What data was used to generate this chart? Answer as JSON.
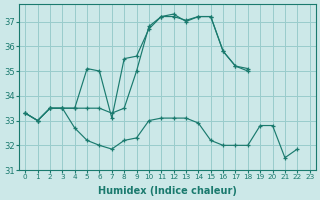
{
  "xlabel": "Humidex (Indice chaleur)",
  "bg_color": "#cce8e8",
  "grid_color": "#99cccc",
  "line_color": "#1a7a6e",
  "xlim": [
    -0.5,
    23.5
  ],
  "ylim": [
    31.0,
    37.7
  ],
  "yticks": [
    31,
    32,
    33,
    34,
    35,
    36,
    37
  ],
  "xticks": [
    0,
    1,
    2,
    3,
    4,
    5,
    6,
    7,
    8,
    9,
    10,
    11,
    12,
    13,
    14,
    15,
    16,
    17,
    18,
    19,
    20,
    21,
    22,
    23
  ],
  "series": [
    {
      "x": [
        0,
        1,
        2,
        3,
        4,
        5,
        6,
        7,
        8,
        9,
        10,
        11,
        12,
        13,
        14,
        15,
        16,
        17,
        18,
        19,
        20,
        21,
        22
      ],
      "y": [
        33.3,
        33.0,
        33.5,
        33.5,
        32.7,
        32.2,
        32.0,
        31.85,
        32.2,
        32.3,
        33.0,
        33.1,
        33.1,
        33.1,
        32.9,
        32.2,
        32.0,
        32.0,
        32.0,
        32.8,
        32.8,
        31.5,
        31.85
      ]
    },
    {
      "x": [
        0,
        1,
        2,
        3,
        4,
        5,
        6,
        7,
        8,
        9,
        10,
        11,
        12,
        13,
        14,
        15,
        16,
        17,
        18
      ],
      "y": [
        33.3,
        33.0,
        33.5,
        33.5,
        33.5,
        35.1,
        35.0,
        33.1,
        35.5,
        35.6,
        36.7,
        37.2,
        37.2,
        37.05,
        37.2,
        37.2,
        35.8,
        35.2,
        35.1
      ]
    },
    {
      "x": [
        0,
        1,
        2,
        3,
        4,
        5,
        6,
        7,
        8,
        9,
        10,
        11,
        12,
        13,
        14,
        15,
        16,
        17,
        18,
        19,
        20,
        21,
        22
      ],
      "y": [
        33.3,
        33.0,
        33.5,
        33.5,
        33.5,
        33.5,
        33.5,
        33.3,
        33.5,
        35.0,
        36.8,
        37.2,
        37.3,
        37.0,
        37.2,
        37.2,
        35.8,
        35.2,
        35.0,
        null,
        null,
        null,
        null
      ]
    }
  ]
}
